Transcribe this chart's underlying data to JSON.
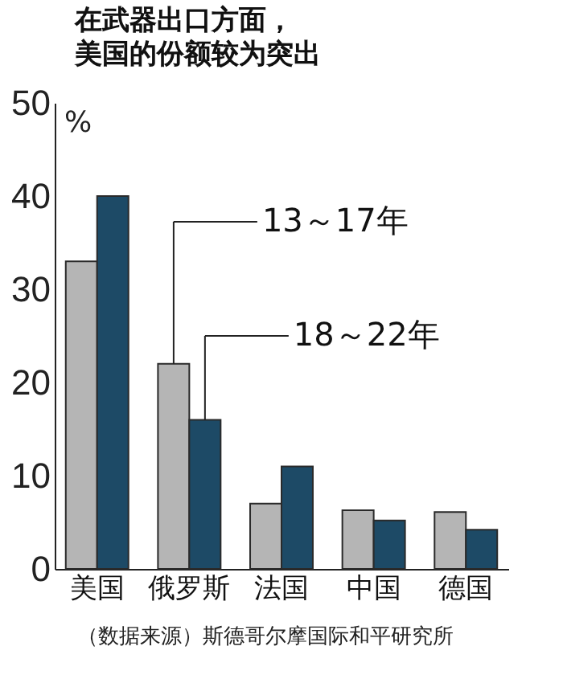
{
  "chart_data": {
    "type": "bar",
    "title": "在武器出口方面，",
    "subtitle": "美国的份额较为突出",
    "ylabel": "%",
    "categories": [
      "美国",
      "俄罗斯",
      "法国",
      "中国",
      "德国"
    ],
    "series": [
      {
        "name": "13～17年",
        "color": "#b5b5b5",
        "values": [
          33,
          22,
          7,
          6.3,
          6.1
        ]
      },
      {
        "name": "18～22年",
        "color": "#1d4a66",
        "values": [
          40,
          16,
          11,
          5.2,
          4.2
        ]
      }
    ],
    "ylim": [
      0,
      50
    ],
    "yticks": [
      0,
      10,
      20,
      30,
      40,
      50
    ],
    "grid": false,
    "legend": "top right",
    "annotations": [
      "（数据来源）斯德哥尔摩国际和平研究所"
    ]
  }
}
